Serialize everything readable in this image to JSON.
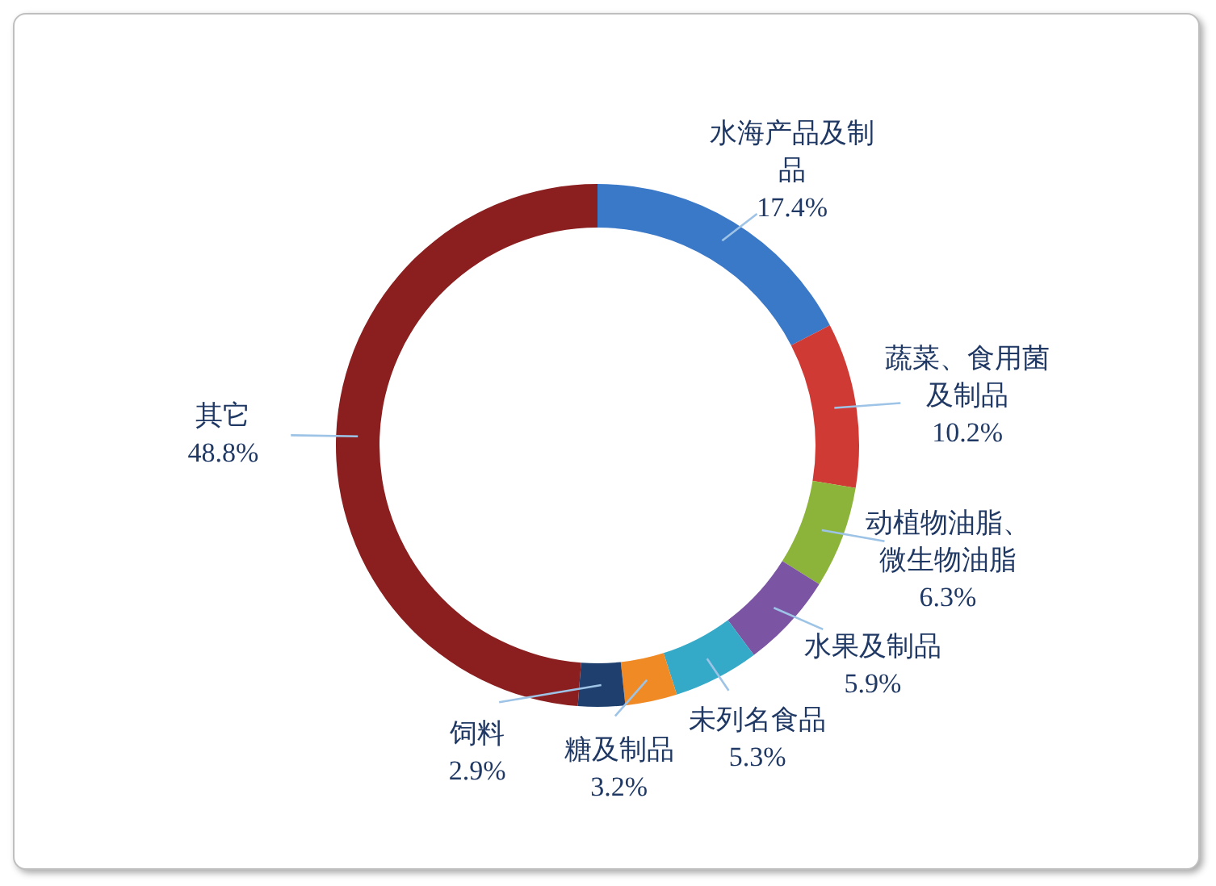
{
  "chart_data": {
    "type": "donut",
    "categories": [
      "水海产品及制品",
      "蔬菜、食用菌及制品",
      "动植物油脂、微生物油脂",
      "水果及制品",
      "未列名食品",
      "糖及制品",
      "饲料",
      "其它"
    ],
    "values": [
      17.4,
      10.2,
      6.3,
      5.9,
      5.3,
      3.2,
      2.9,
      48.8
    ],
    "value_labels": [
      "17.4%",
      "10.2%",
      "6.3%",
      "5.9%",
      "5.3%",
      "3.2%",
      "2.9%",
      "48.8%"
    ],
    "colors": [
      "#3a78c8",
      "#d03a35",
      "#8db43a",
      "#7b54a3",
      "#35aac8",
      "#f08a25",
      "#1f3f6e",
      "#8b1e1e"
    ]
  }
}
